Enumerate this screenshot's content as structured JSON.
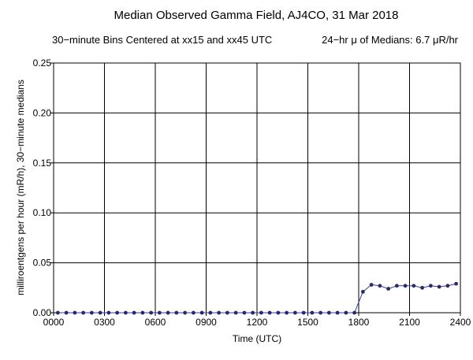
{
  "chart_data": {
    "type": "line",
    "title": "Median Observed Gamma Field, AJ4CO, 31 Mar 2018",
    "subtitle_left": "30−minute Bins Centered at xx15 and xx45 UTC",
    "subtitle_right": "24−hr μ of Medians: 6.7 μR/hr",
    "xlabel": "Time (UTC)",
    "ylabel": "milliroentgens per hour (mR/h), 30−minute medians",
    "xlim": [
      0,
      24
    ],
    "ylim": [
      0,
      0.25
    ],
    "x_ticks": [
      0,
      3,
      6,
      9,
      12,
      15,
      18,
      21,
      24
    ],
    "x_tick_labels": [
      "0000",
      "0300",
      "0600",
      "0900",
      "1200",
      "1500",
      "1800",
      "2100",
      "2400"
    ],
    "y_ticks": [
      0,
      0.05,
      0.1,
      0.15,
      0.2,
      0.25
    ],
    "y_tick_labels": [
      "0.00",
      "0.05",
      "0.10",
      "0.15",
      "0.20",
      "0.25"
    ],
    "grid": true,
    "line_color": "#3c3c8c",
    "marker_color": "#282870",
    "series": [
      {
        "x": [
          0.25,
          0.75,
          1.25,
          1.75,
          2.25,
          2.75,
          3.25,
          3.75,
          4.25,
          4.75,
          5.25,
          5.75,
          6.25,
          6.75,
          7.25,
          7.75,
          8.25,
          8.75,
          9.25,
          9.75,
          10.25,
          10.75,
          11.25,
          11.75,
          12.25,
          12.75,
          13.25,
          13.75,
          14.25,
          14.75,
          15.25,
          15.75,
          16.25,
          16.75,
          17.25,
          17.75,
          18.25,
          18.75,
          19.25,
          19.75,
          20.25,
          20.75,
          21.25,
          21.75,
          22.25,
          22.75,
          23.25,
          23.75
        ],
        "y": [
          0,
          0,
          0,
          0,
          0,
          0,
          0,
          0,
          0,
          0,
          0,
          0,
          0,
          0,
          0,
          0,
          0,
          0,
          0,
          0,
          0,
          0,
          0,
          0,
          0,
          0,
          0,
          0,
          0,
          0,
          0,
          0,
          0,
          0,
          0,
          0,
          0.021,
          0.028,
          0.027,
          0.024,
          0.027,
          0.027,
          0.027,
          0.025,
          0.027,
          0.026,
          0.027,
          0.029
        ]
      }
    ]
  }
}
